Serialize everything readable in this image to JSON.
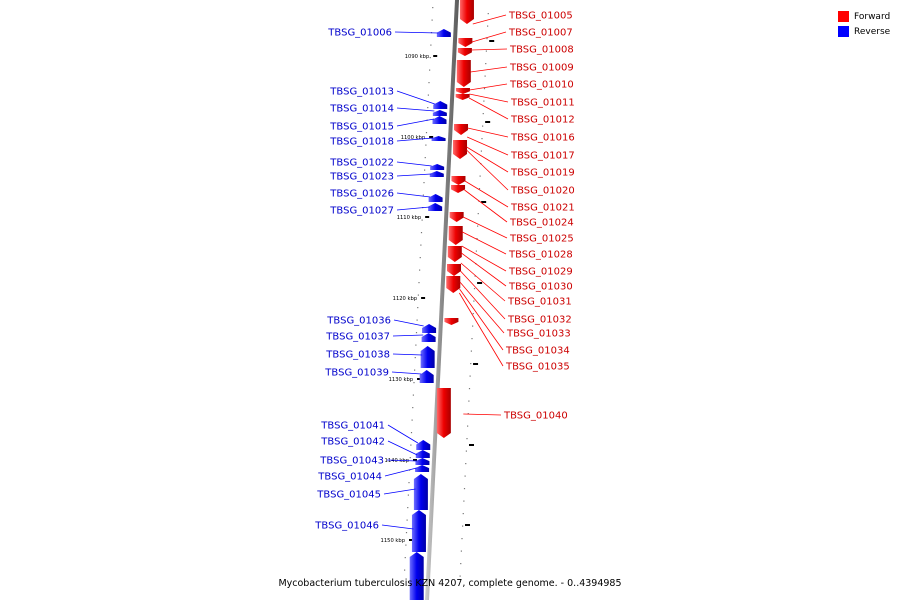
{
  "legend": [
    {
      "label": "Forward",
      "color": "#ff0000"
    },
    {
      "label": "Reverse",
      "color": "#0000ff"
    }
  ],
  "caption": "Mycobacterium tuberculosis KZN 4207, complete genome. - 0..4394985",
  "scale_labels": [
    "1090 kbp",
    "1100 kbp",
    "1110 kbp",
    "1120 kbp",
    "1130 kbp",
    "1140 kbp",
    "1150 kbp"
  ],
  "forward_genes": [
    "TBSG_01005",
    "TBSG_01007",
    "TBSG_01008",
    "TBSG_01009",
    "TBSG_01010",
    "TBSG_01011",
    "TBSG_01012",
    "TBSG_01016",
    "TBSG_01017",
    "TBSG_01019",
    "TBSG_01020",
    "TBSG_01021",
    "TBSG_01024",
    "TBSG_01025",
    "TBSG_01028",
    "TBSG_01029",
    "TBSG_01030",
    "TBSG_01031",
    "TBSG_01032",
    "TBSG_01033",
    "TBSG_01034",
    "TBSG_01035",
    "TBSG_01040"
  ],
  "reverse_genes": [
    "TBSG_01006",
    "TBSG_01013",
    "TBSG_01014",
    "TBSG_01015",
    "TBSG_01018",
    "TBSG_01022",
    "TBSG_01023",
    "TBSG_01026",
    "TBSG_01027",
    "TBSG_01036",
    "TBSG_01037",
    "TBSG_01038",
    "TBSG_01039",
    "TBSG_01041",
    "TBSG_01042",
    "TBSG_01043",
    "TBSG_01044",
    "TBSG_01045",
    "TBSG_01046"
  ],
  "colors": {
    "forward": "#ff0000",
    "reverse": "#0000ff",
    "backbone": "#9a9a9a"
  }
}
